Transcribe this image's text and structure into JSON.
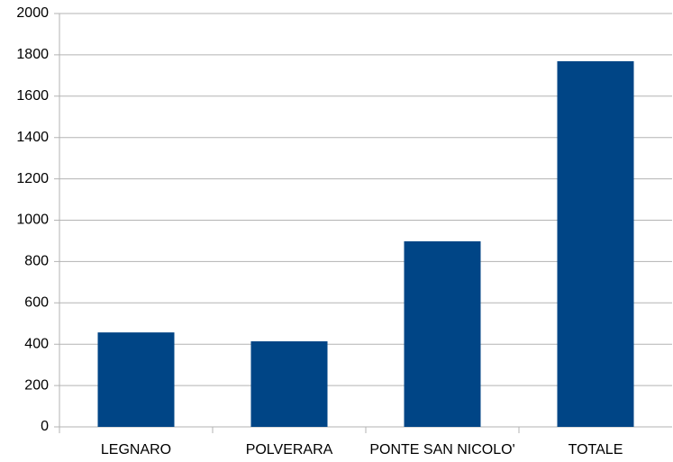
{
  "chart_data": {
    "type": "bar",
    "categories": [
      "LEGNARO",
      "POLVERARA",
      "PONTE SAN NICOLO'",
      "TOTALE"
    ],
    "values": [
      457,
      414,
      898,
      1769
    ],
    "color": "#004586",
    "ylim": [
      0,
      2000
    ],
    "yticks": [
      0,
      200,
      400,
      600,
      800,
      1000,
      1200,
      1400,
      1600,
      1800,
      2000
    ],
    "grid": true
  }
}
